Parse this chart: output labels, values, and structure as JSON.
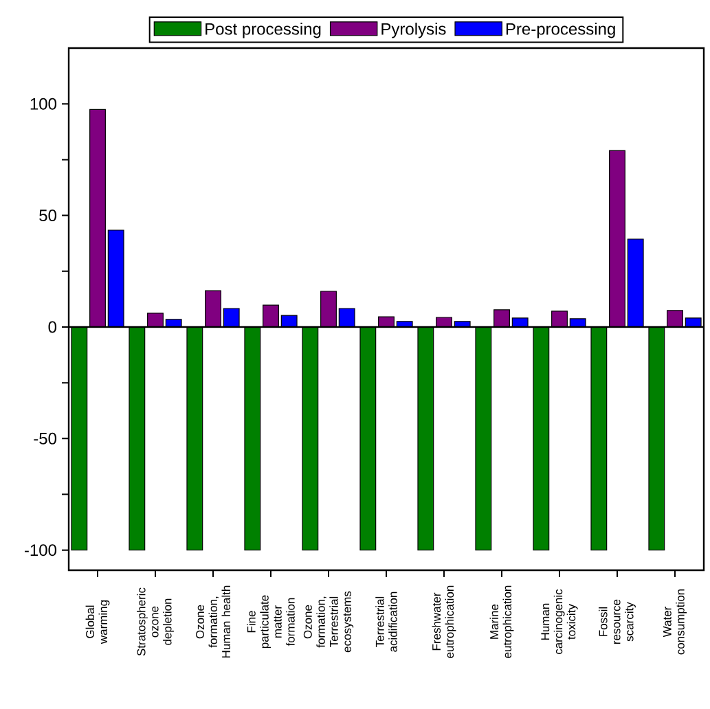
{
  "chart_data": {
    "type": "bar",
    "categories": [
      "Global warming",
      "Stratospheric ozone depletion",
      "Ozone formation, Human health",
      "Fine particulate matter formation",
      "Ozone formation, Terrestrial ecosystems",
      "Terrestrial acidification",
      "Freshwater eutrophication",
      "Marine eutrophication",
      "Human carcinogenic toxicity",
      "Fossil resource scarcity",
      "Water consumption"
    ],
    "series": [
      {
        "name": "Post processing",
        "color": "#008000",
        "values": [
          -100,
          -100,
          -100,
          -100,
          -100,
          -100,
          -100,
          -100,
          -100,
          -100,
          -100
        ]
      },
      {
        "name": "Pyrolysis",
        "color": "#800080",
        "values": [
          97.5,
          6.2,
          16.3,
          9.8,
          16.0,
          4.6,
          4.3,
          7.7,
          7.1,
          79.1,
          7.4
        ]
      },
      {
        "name": "Pre-processing",
        "color": "#0000ff",
        "values": [
          43.4,
          3.4,
          8.3,
          5.2,
          8.3,
          2.5,
          2.5,
          4.0,
          3.7,
          39.4,
          4.0
        ]
      }
    ],
    "ylim": [
      -109,
      125
    ],
    "yticks": [
      -100,
      {
        "value": -75,
        "label": null
      },
      -50,
      {
        "value": -25,
        "label": null
      },
      0,
      {
        "value": 25,
        "label": null
      },
      50,
      {
        "value": 75,
        "label": null
      },
      100
    ],
    "legend": "top"
  }
}
